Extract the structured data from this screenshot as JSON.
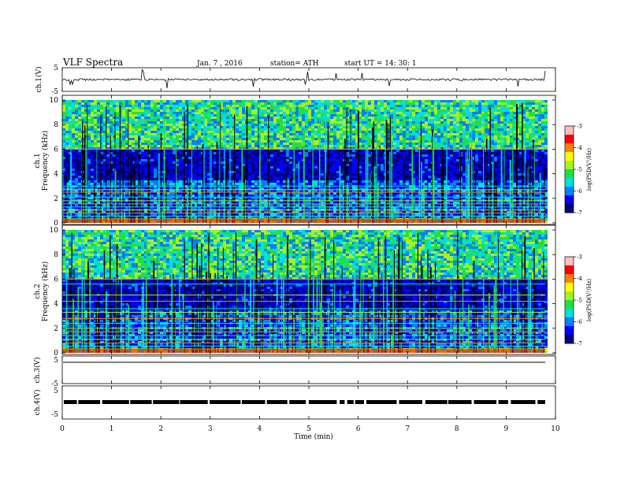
{
  "header": {
    "title": "VLF  Spectra",
    "date": "Jan.  7  , 2016",
    "station": "station= ATH",
    "start": "start  UT  =    14: 30: 1"
  },
  "chart_data": [
    {
      "type": "line",
      "name": "ch1-waveform",
      "ylabel": "ch.1(V)",
      "ylim": [
        -5,
        5
      ],
      "yticks": [
        "5",
        "-5"
      ],
      "xlim": [
        0,
        10
      ]
    },
    {
      "type": "heatmap",
      "name": "ch1-spectrogram",
      "ylabel": "ch.1\nFrequency  (kHz)",
      "ylim": [
        0,
        10
      ],
      "yticks": [
        "0",
        "2",
        "4",
        "6",
        "8",
        "10"
      ],
      "xlim": [
        0,
        9.8
      ],
      "colorbar": {
        "label": "log(PSD(V²/Hz)",
        "range": [
          -7,
          -3
        ],
        "ticks": [
          "-3",
          "-4",
          "-5",
          "-6",
          "-7"
        ]
      },
      "persistent_lines_khz": [
        0.3,
        0.55,
        0.8,
        1.05,
        1.3,
        1.55,
        1.8,
        2.1,
        2.5,
        2.7,
        3.0,
        6.0
      ]
    },
    {
      "type": "heatmap",
      "name": "ch2-spectrogram",
      "ylabel": "ch.2\nFrequency  (kHz)",
      "ylim": [
        0,
        10
      ],
      "yticks": [
        "0",
        "2",
        "4",
        "6",
        "8",
        "10"
      ],
      "xlim": [
        0,
        9.8
      ],
      "colorbar": {
        "label": "log(PSD(V²/Hz)",
        "range": [
          -7,
          -3
        ],
        "ticks": [
          "-3",
          "-4",
          "-5",
          "-6",
          "-7"
        ]
      },
      "persistent_lines_khz": [
        0.3,
        0.55,
        0.8,
        1.1,
        1.4,
        1.7,
        2.0,
        2.4,
        2.8,
        3.3,
        3.6,
        4.2,
        4.7,
        5.6,
        6.0
      ]
    },
    {
      "type": "line",
      "name": "ch3-waveform",
      "ylabel": "ch.3(V)",
      "ylim": [
        -5,
        5
      ],
      "yticks": [
        "5",
        "-5"
      ],
      "xlim": [
        0,
        10
      ]
    },
    {
      "type": "line",
      "name": "ch4-waveform",
      "ylabel": "ch.4(V)",
      "ylim": [
        -5,
        5
      ],
      "yticks": [
        "5",
        "-5"
      ],
      "xlim": [
        0,
        10
      ]
    }
  ],
  "xaxis": {
    "label": "Time  (min)",
    "range": [
      0,
      10
    ],
    "ticks": [
      "0",
      "1",
      "2",
      "3",
      "4",
      "5",
      "6",
      "7",
      "8",
      "9",
      "10"
    ]
  },
  "colors": {
    "colormap": [
      "#00007a",
      "#0000ff",
      "#0080ff",
      "#00e0e0",
      "#20e040",
      "#a8f020",
      "#ffff00",
      "#ff8000",
      "#ff0000",
      "#ffc0c0"
    ]
  }
}
